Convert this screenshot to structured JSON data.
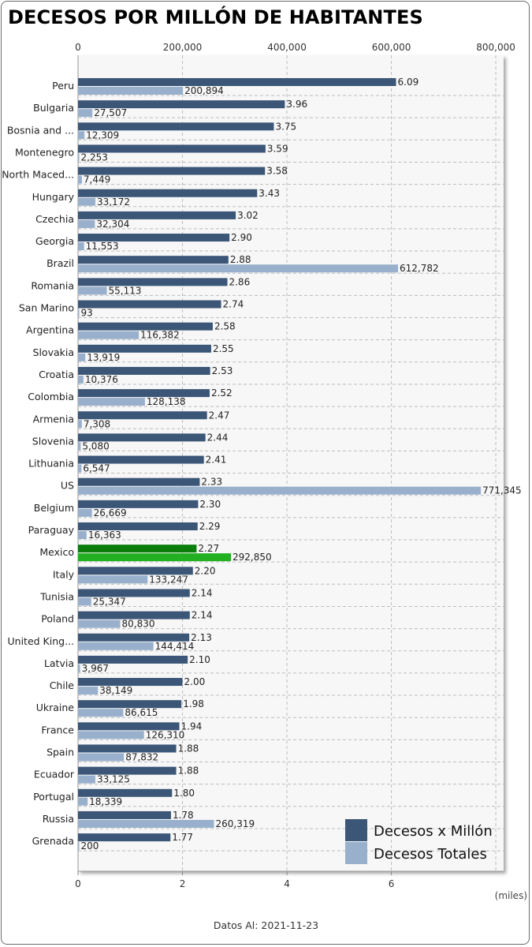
{
  "title": "DECESOS POR MILLÓN DE HABITANTES",
  "unit_note": "(miles)",
  "footer": "Datos Al: 2021-11-23",
  "colors": {
    "per_million": "#3b5677",
    "total": "#98b0cc",
    "highlight_per_million": "#0b7d0b",
    "highlight_total": "#22b022",
    "plot_bg": "#f7f7f7",
    "grid": "#bdbdbd"
  },
  "chart_data": {
    "type": "bar",
    "orientation": "horizontal",
    "highlight": "Mexico",
    "categories": [
      "Peru",
      "Bulgaria",
      "Bosnia and ...",
      "Montenegro",
      "North Maced...",
      "Hungary",
      "Czechia",
      "Georgia",
      "Brazil",
      "Romania",
      "San Marino",
      "Argentina",
      "Slovakia",
      "Croatia",
      "Colombia",
      "Armenia",
      "Slovenia",
      "Lithuania",
      "US",
      "Belgium",
      "Paraguay",
      "Mexico",
      "Italy",
      "Tunisia",
      "Poland",
      "United King...",
      "Latvia",
      "Chile",
      "Ukraine",
      "France",
      "Spain",
      "Ecuador",
      "Portugal",
      "Russia",
      "Grenada"
    ],
    "series": [
      {
        "name": "Decesos x Millón",
        "axis": "bottom",
        "values": [
          6.09,
          3.96,
          3.75,
          3.59,
          3.58,
          3.43,
          3.02,
          2.9,
          2.88,
          2.86,
          2.74,
          2.58,
          2.55,
          2.53,
          2.52,
          2.47,
          2.44,
          2.41,
          2.33,
          2.3,
          2.29,
          2.27,
          2.2,
          2.14,
          2.14,
          2.13,
          2.1,
          2.0,
          1.98,
          1.94,
          1.88,
          1.88,
          1.8,
          1.78,
          1.77
        ],
        "labels": [
          "6.09",
          "3.96",
          "3.75",
          "3.59",
          "3.58",
          "3.43",
          "3.02",
          "2.90",
          "2.88",
          "2.86",
          "2.74",
          "2.58",
          "2.55",
          "2.53",
          "2.52",
          "2.47",
          "2.44",
          "2.41",
          "2.33",
          "2.30",
          "2.29",
          "2.27",
          "2.20",
          "2.14",
          "2.14",
          "2.13",
          "2.10",
          "2.00",
          "1.98",
          "1.94",
          "1.88",
          "1.88",
          "1.80",
          "1.78",
          "1.77"
        ]
      },
      {
        "name": "Decesos Totales",
        "axis": "top",
        "values": [
          200894,
          27507,
          12309,
          2253,
          7449,
          33172,
          32304,
          11553,
          612782,
          55113,
          93,
          116382,
          13919,
          10376,
          128138,
          7308,
          5080,
          6547,
          771345,
          26669,
          16363,
          292850,
          133247,
          25347,
          80830,
          144414,
          3967,
          38149,
          86615,
          126310,
          87832,
          33125,
          18339,
          260319,
          200
        ],
        "labels": [
          "200,894",
          "27,507",
          "12,309",
          "2,253",
          "7,449",
          "33,172",
          "32,304",
          "11,553",
          "612,782",
          "55,113",
          "93",
          "116,382",
          "13,919",
          "10,376",
          "128,138",
          "7,308",
          "5,080",
          "6,547",
          "771,345",
          "26,669",
          "16,363",
          "292,850",
          "133,247",
          "25,347",
          "80,830",
          "144,414",
          "3,967",
          "38,149",
          "86,615",
          "126,310",
          "87,832",
          "33,125",
          "18,339",
          "260,319",
          "200"
        ]
      }
    ],
    "top_axis": {
      "min": 0,
      "max": 815000,
      "ticks": [
        0,
        200000,
        400000,
        600000,
        800000
      ],
      "tick_labels": [
        "0",
        "200,000",
        "400,000",
        "600,000",
        "800,000"
      ]
    },
    "bottom_axis": {
      "min": 0,
      "max": 8.15,
      "ticks": [
        0,
        2,
        4,
        6
      ],
      "tick_labels": [
        "0",
        "2",
        "4",
        "6"
      ]
    },
    "grid": true,
    "legend_position": "bottom-right"
  }
}
